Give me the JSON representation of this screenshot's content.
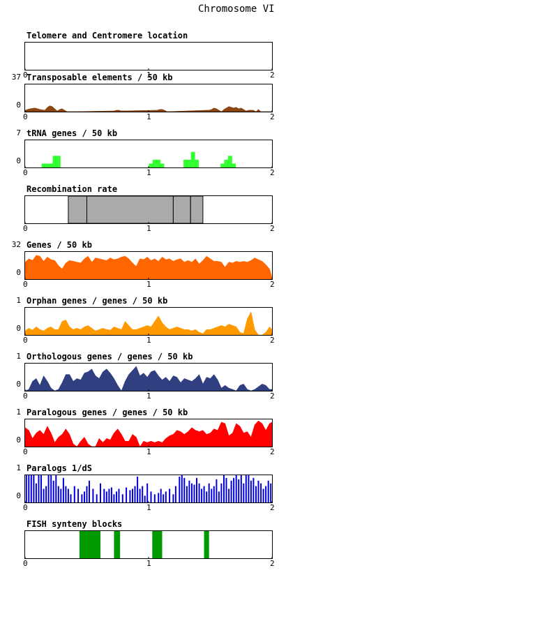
{
  "page_title": "Chromosome VI",
  "x_ticks": [
    "0",
    "1",
    "2"
  ],
  "chart_data": [
    {
      "type": "area",
      "title": "Telomere and Centromere location",
      "ymax_label": "",
      "ymin_label": "",
      "x": [],
      "values": [],
      "color": "#000000",
      "xlim": [
        0,
        2
      ]
    },
    {
      "type": "area",
      "title": "Transposable elements / 50 kb",
      "ymax_label": "37",
      "ymin_label": "0",
      "ylim": [
        0,
        37
      ],
      "x": [
        0,
        0.04,
        0.08,
        0.12,
        0.16,
        0.18,
        0.2,
        0.22,
        0.24,
        0.26,
        0.28,
        0.3,
        0.32,
        0.34,
        0.36,
        0.38,
        0.4,
        0.72,
        0.74,
        0.76,
        0.78,
        1.07,
        1.09,
        1.11,
        1.13,
        1.15,
        1.47,
        1.49,
        1.51,
        1.53,
        1.55,
        1.57,
        1.59,
        1.61,
        1.63,
        1.65,
        1.67,
        1.69,
        1.71,
        1.73,
        1.75,
        1.77,
        1.79,
        1.81,
        1.83,
        1.85,
        1.87,
        1.89,
        1.91,
        1.93,
        1.95,
        1.97,
        2.0
      ],
      "values": [
        2,
        4,
        5,
        3,
        2,
        6,
        8,
        7,
        4,
        1,
        3,
        4,
        2,
        0,
        0,
        0,
        0,
        1,
        2,
        2,
        1,
        2,
        3,
        3,
        2,
        0,
        2,
        2,
        3,
        5,
        4,
        2,
        0,
        3,
        5,
        7,
        6,
        5,
        6,
        4,
        5,
        3,
        1,
        2,
        2,
        2,
        0,
        3,
        0,
        0,
        0,
        0,
        0
      ],
      "color": "#8b4513",
      "xlim": [
        0,
        2
      ]
    },
    {
      "type": "bar",
      "title": "tRNA genes / 50 kb",
      "ymax_label": "7",
      "ymin_label": "0",
      "ylim": [
        0,
        7
      ],
      "x": [
        0.15,
        0.18,
        0.21,
        0.24,
        0.27,
        1.02,
        1.05,
        1.08,
        1.11,
        1.3,
        1.33,
        1.36,
        1.39,
        1.6,
        1.63,
        1.66,
        1.69
      ],
      "values": [
        1,
        1,
        1,
        3,
        3,
        1,
        2,
        2,
        1,
        2,
        2,
        4,
        2,
        1,
        2,
        3,
        1
      ],
      "color": "#33ff33",
      "xlim": [
        0,
        2
      ]
    },
    {
      "type": "bar",
      "title": "Recombination rate",
      "ymax_label": "",
      "ymin_label": "",
      "x": [],
      "values": [],
      "segments": [
        [
          0.35,
          0.5
        ],
        [
          0.5,
          1.2
        ],
        [
          1.2,
          1.34
        ],
        [
          1.34,
          1.44
        ]
      ],
      "color": "#aaaaaa",
      "xlim": [
        0,
        2
      ]
    },
    {
      "type": "area",
      "title": "Genes / 50 kb",
      "ymax_label": "32",
      "ymin_label": "0",
      "ylim": [
        0,
        32
      ],
      "x": [
        0,
        0.03,
        0.06,
        0.09,
        0.12,
        0.15,
        0.18,
        0.21,
        0.24,
        0.27,
        0.3,
        0.33,
        0.36,
        0.39,
        0.42,
        0.45,
        0.48,
        0.51,
        0.54,
        0.57,
        0.6,
        0.63,
        0.66,
        0.69,
        0.72,
        0.75,
        0.78,
        0.81,
        0.84,
        0.87,
        0.9,
        0.93,
        0.96,
        0.99,
        1.02,
        1.05,
        1.08,
        1.11,
        1.14,
        1.17,
        1.2,
        1.23,
        1.26,
        1.29,
        1.32,
        1.35,
        1.38,
        1.41,
        1.44,
        1.47,
        1.5,
        1.53,
        1.56,
        1.59,
        1.62,
        1.65,
        1.68,
        1.71,
        1.74,
        1.77,
        1.8,
        1.83,
        1.86,
        1.89,
        1.92,
        1.95,
        1.98,
        2.0
      ],
      "values": [
        20,
        24,
        22,
        28,
        27,
        21,
        26,
        23,
        22,
        16,
        12,
        19,
        22,
        21,
        20,
        19,
        24,
        27,
        20,
        25,
        24,
        23,
        22,
        25,
        23,
        24,
        26,
        27,
        24,
        19,
        15,
        24,
        23,
        26,
        22,
        24,
        21,
        26,
        23,
        24,
        21,
        23,
        24,
        20,
        22,
        20,
        24,
        18,
        22,
        27,
        24,
        21,
        21,
        20,
        14,
        20,
        19,
        21,
        20,
        21,
        20,
        22,
        25,
        23,
        21,
        17,
        12,
        2
      ],
      "color": "#ff6600",
      "xlim": [
        0,
        2
      ]
    },
    {
      "type": "area",
      "title": "Orphan genes / genes / 50 kb",
      "ymax_label": "1",
      "ymin_label": "0",
      "ylim": [
        0,
        1
      ],
      "x": [
        0,
        0.03,
        0.06,
        0.09,
        0.12,
        0.15,
        0.18,
        0.21,
        0.24,
        0.27,
        0.3,
        0.33,
        0.36,
        0.39,
        0.42,
        0.45,
        0.48,
        0.51,
        0.54,
        0.57,
        0.6,
        0.63,
        0.66,
        0.69,
        0.72,
        0.75,
        0.78,
        0.81,
        0.84,
        0.87,
        0.9,
        0.93,
        0.96,
        0.99,
        1.02,
        1.05,
        1.08,
        1.11,
        1.14,
        1.17,
        1.2,
        1.23,
        1.26,
        1.29,
        1.32,
        1.35,
        1.38,
        1.41,
        1.44,
        1.47,
        1.5,
        1.53,
        1.56,
        1.59,
        1.62,
        1.65,
        1.68,
        1.71,
        1.74,
        1.77,
        1.8,
        1.83,
        1.86,
        1.89,
        1.92,
        1.95,
        1.98,
        2.0
      ],
      "values": [
        0.15,
        0.25,
        0.18,
        0.3,
        0.2,
        0.15,
        0.25,
        0.3,
        0.2,
        0.2,
        0.5,
        0.55,
        0.3,
        0.2,
        0.25,
        0.2,
        0.3,
        0.35,
        0.25,
        0.15,
        0.2,
        0.25,
        0.2,
        0.18,
        0.3,
        0.25,
        0.2,
        0.5,
        0.35,
        0.2,
        0.2,
        0.25,
        0.3,
        0.35,
        0.3,
        0.5,
        0.7,
        0.45,
        0.3,
        0.2,
        0.25,
        0.3,
        0.25,
        0.2,
        0.2,
        0.15,
        0.2,
        0.1,
        0.05,
        0.2,
        0.2,
        0.25,
        0.3,
        0.35,
        0.3,
        0.4,
        0.35,
        0.3,
        0.1,
        0.05,
        0.6,
        0.85,
        0.2,
        0.0,
        0.0,
        0.1,
        0.3,
        0.2
      ],
      "color": "#ff9900",
      "xlim": [
        0,
        2
      ]
    },
    {
      "type": "area",
      "title": "Orthologous genes / genes / 50 kb",
      "ymax_label": "1",
      "ymin_label": "0",
      "ylim": [
        0,
        1
      ],
      "x": [
        0,
        0.03,
        0.06,
        0.09,
        0.12,
        0.15,
        0.18,
        0.21,
        0.24,
        0.27,
        0.3,
        0.33,
        0.36,
        0.39,
        0.42,
        0.45,
        0.48,
        0.51,
        0.54,
        0.57,
        0.6,
        0.63,
        0.66,
        0.69,
        0.72,
        0.75,
        0.78,
        0.81,
        0.84,
        0.87,
        0.9,
        0.93,
        0.96,
        0.99,
        1.02,
        1.05,
        1.08,
        1.11,
        1.14,
        1.17,
        1.2,
        1.23,
        1.26,
        1.29,
        1.32,
        1.35,
        1.38,
        1.41,
        1.44,
        1.47,
        1.5,
        1.53,
        1.56,
        1.59,
        1.62,
        1.65,
        1.68,
        1.71,
        1.74,
        1.77,
        1.8,
        1.83,
        1.86,
        1.89,
        1.92,
        1.95,
        1.98,
        2.0
      ],
      "values": [
        0.0,
        0.05,
        0.35,
        0.45,
        0.2,
        0.55,
        0.35,
        0.1,
        0.0,
        0.05,
        0.3,
        0.6,
        0.6,
        0.35,
        0.45,
        0.4,
        0.65,
        0.7,
        0.8,
        0.55,
        0.45,
        0.7,
        0.8,
        0.65,
        0.45,
        0.2,
        0.0,
        0.35,
        0.6,
        0.75,
        0.9,
        0.55,
        0.65,
        0.5,
        0.7,
        0.75,
        0.55,
        0.4,
        0.5,
        0.35,
        0.55,
        0.5,
        0.3,
        0.45,
        0.4,
        0.35,
        0.45,
        0.6,
        0.25,
        0.5,
        0.45,
        0.6,
        0.4,
        0.1,
        0.2,
        0.1,
        0.05,
        0.0,
        0.2,
        0.25,
        0.05,
        0.0,
        0.05,
        0.15,
        0.25,
        0.2,
        0.05,
        0.05
      ],
      "color": "#2f3f7f",
      "xlim": [
        0,
        2
      ]
    },
    {
      "type": "area",
      "title": "Paralogous genes / genes / 50 kb",
      "ymax_label": "1",
      "ymin_label": "0",
      "ylim": [
        0,
        1
      ],
      "x": [
        0,
        0.03,
        0.06,
        0.09,
        0.12,
        0.15,
        0.18,
        0.21,
        0.24,
        0.27,
        0.3,
        0.33,
        0.36,
        0.39,
        0.42,
        0.45,
        0.48,
        0.51,
        0.54,
        0.57,
        0.6,
        0.63,
        0.66,
        0.69,
        0.72,
        0.75,
        0.78,
        0.81,
        0.84,
        0.87,
        0.9,
        0.93,
        0.96,
        0.99,
        1.02,
        1.05,
        1.08,
        1.11,
        1.14,
        1.17,
        1.2,
        1.23,
        1.26,
        1.29,
        1.32,
        1.35,
        1.38,
        1.41,
        1.44,
        1.47,
        1.5,
        1.53,
        1.56,
        1.59,
        1.62,
        1.65,
        1.68,
        1.71,
        1.74,
        1.77,
        1.8,
        1.83,
        1.86,
        1.89,
        1.92,
        1.95,
        1.98,
        2.0
      ],
      "values": [
        0.7,
        0.6,
        0.3,
        0.5,
        0.6,
        0.45,
        0.75,
        0.5,
        0.15,
        0.35,
        0.45,
        0.65,
        0.45,
        0.1,
        0.0,
        0.2,
        0.35,
        0.1,
        0.0,
        0.0,
        0.3,
        0.15,
        0.3,
        0.25,
        0.5,
        0.65,
        0.45,
        0.2,
        0.2,
        0.45,
        0.35,
        0.0,
        0.2,
        0.15,
        0.2,
        0.15,
        0.2,
        0.15,
        0.3,
        0.4,
        0.45,
        0.6,
        0.55,
        0.45,
        0.55,
        0.7,
        0.6,
        0.55,
        0.6,
        0.45,
        0.5,
        0.65,
        0.6,
        0.9,
        0.85,
        0.4,
        0.5,
        0.85,
        0.75,
        0.5,
        0.55,
        0.35,
        0.8,
        0.95,
        0.85,
        0.6,
        0.85,
        0.9
      ],
      "color": "#ff0000",
      "xlim": [
        0,
        2
      ]
    },
    {
      "type": "bar",
      "title": "Paralogs 1/dS",
      "ymax_label": "1",
      "ymin_label": "0",
      "ylim": [
        0,
        1
      ],
      "x": [
        0.01,
        0.03,
        0.05,
        0.07,
        0.09,
        0.11,
        0.13,
        0.15,
        0.17,
        0.19,
        0.21,
        0.23,
        0.25,
        0.27,
        0.29,
        0.31,
        0.33,
        0.35,
        0.37,
        0.4,
        0.43,
        0.46,
        0.48,
        0.5,
        0.52,
        0.55,
        0.58,
        0.61,
        0.64,
        0.66,
        0.68,
        0.7,
        0.72,
        0.74,
        0.76,
        0.79,
        0.82,
        0.85,
        0.87,
        0.89,
        0.91,
        0.93,
        0.95,
        0.97,
        0.99,
        1.02,
        1.05,
        1.08,
        1.1,
        1.12,
        1.14,
        1.17,
        1.2,
        1.22,
        1.25,
        1.27,
        1.29,
        1.31,
        1.33,
        1.35,
        1.37,
        1.39,
        1.41,
        1.43,
        1.45,
        1.47,
        1.49,
        1.51,
        1.53,
        1.55,
        1.57,
        1.59,
        1.61,
        1.63,
        1.65,
        1.67,
        1.69,
        1.71,
        1.73,
        1.75,
        1.77,
        1.79,
        1.81,
        1.83,
        1.85,
        1.87,
        1.89,
        1.91,
        1.93,
        1.95,
        1.97,
        1.99
      ],
      "values": [
        1.0,
        1.0,
        1.0,
        1.0,
        0.7,
        1.0,
        1.0,
        0.5,
        0.6,
        1.0,
        1.0,
        0.8,
        1.0,
        0.6,
        0.5,
        0.9,
        0.6,
        0.5,
        0.3,
        0.6,
        0.5,
        0.3,
        0.4,
        0.6,
        0.8,
        0.5,
        0.3,
        0.7,
        0.5,
        0.4,
        0.5,
        0.55,
        0.3,
        0.4,
        0.5,
        0.3,
        0.55,
        0.45,
        0.5,
        0.6,
        0.95,
        0.5,
        0.6,
        0.25,
        0.7,
        0.4,
        0.3,
        0.35,
        0.5,
        0.3,
        0.4,
        0.5,
        0.3,
        0.6,
        0.95,
        1.0,
        0.9,
        0.6,
        0.8,
        0.7,
        0.65,
        0.9,
        0.7,
        0.5,
        0.6,
        0.4,
        0.7,
        0.5,
        0.6,
        0.85,
        0.4,
        0.7,
        1.0,
        0.9,
        0.5,
        0.8,
        0.9,
        1.0,
        0.85,
        1.0,
        0.7,
        1.0,
        1.0,
        0.8,
        0.9,
        0.6,
        0.8,
        0.7,
        0.5,
        0.6,
        0.8,
        0.7
      ],
      "color": "#0000dd",
      "xlim": [
        0,
        2
      ]
    },
    {
      "type": "bar",
      "title": "FISH synteny blocks",
      "ymax_label": "",
      "ymin_label": "",
      "x": [],
      "values": [],
      "segments": [
        [
          0.44,
          0.61
        ],
        [
          0.72,
          0.77
        ],
        [
          1.03,
          1.11
        ],
        [
          1.45,
          1.49
        ]
      ],
      "color": "#009900",
      "xlim": [
        0,
        2
      ]
    }
  ]
}
